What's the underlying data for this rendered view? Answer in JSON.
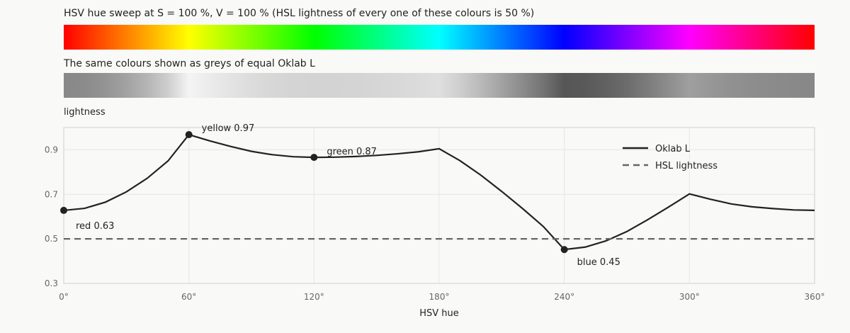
{
  "header": {
    "strip_title": "HSV hue sweep at S = 100 %, V = 100 %  (HSL lightness of every one of these colours is 50 %)",
    "grey_title": "The same colours shown as greys of equal Oklab L"
  },
  "colors": {
    "oklab_line": "#222222",
    "hsl_line": "#666666",
    "grid": "#e6e6e6",
    "frame": "#cfcfcf",
    "background": "#f9f9f7"
  },
  "hue_strip_stops": [
    "#ff0000",
    "#ffff00",
    "#00ff00",
    "#00ffff",
    "#0000ff",
    "#ff00ff",
    "#ff0000"
  ],
  "chart_data": {
    "type": "line",
    "xlabel": "HSV hue",
    "ylabel": "lightness",
    "xlim": [
      0,
      360
    ],
    "ylim": [
      0.3,
      1.0
    ],
    "xticks": [
      0,
      60,
      120,
      180,
      240,
      300,
      360
    ],
    "xtick_labels": [
      "0°",
      "60°",
      "120°",
      "180°",
      "240°",
      "300°",
      "360°"
    ],
    "yticks": [
      0.3,
      0.5,
      0.7,
      0.9
    ],
    "ytick_labels": [
      "0.3",
      "0.5",
      "0.7",
      "0.9"
    ],
    "grid": true,
    "legend_position": "top-right",
    "series": [
      {
        "name": "Oklab L",
        "style": "solid",
        "x": [
          0,
          10,
          20,
          30,
          40,
          50,
          60,
          70,
          80,
          90,
          100,
          110,
          120,
          130,
          140,
          150,
          160,
          170,
          180,
          190,
          200,
          210,
          220,
          230,
          240,
          250,
          260,
          270,
          280,
          290,
          300,
          310,
          320,
          330,
          340,
          350,
          360
        ],
        "y": [
          0.628,
          0.637,
          0.665,
          0.711,
          0.772,
          0.85,
          0.968,
          0.94,
          0.915,
          0.893,
          0.878,
          0.869,
          0.866,
          0.867,
          0.87,
          0.875,
          0.882,
          0.891,
          0.905,
          0.851,
          0.786,
          0.713,
          0.636,
          0.555,
          0.452,
          0.463,
          0.491,
          0.533,
          0.586,
          0.643,
          0.702,
          0.678,
          0.657,
          0.644,
          0.636,
          0.63,
          0.628
        ]
      },
      {
        "name": "HSL lightness",
        "style": "dashed",
        "x": [
          0,
          360
        ],
        "y": [
          0.5,
          0.5
        ]
      }
    ],
    "annotations": [
      {
        "text": "red 0.63",
        "x": 0,
        "y": 0.628
      },
      {
        "text": "yellow 0.97",
        "x": 60,
        "y": 0.968
      },
      {
        "text": "green 0.87",
        "x": 120,
        "y": 0.866
      },
      {
        "text": "blue 0.45",
        "x": 240,
        "y": 0.452
      }
    ]
  }
}
